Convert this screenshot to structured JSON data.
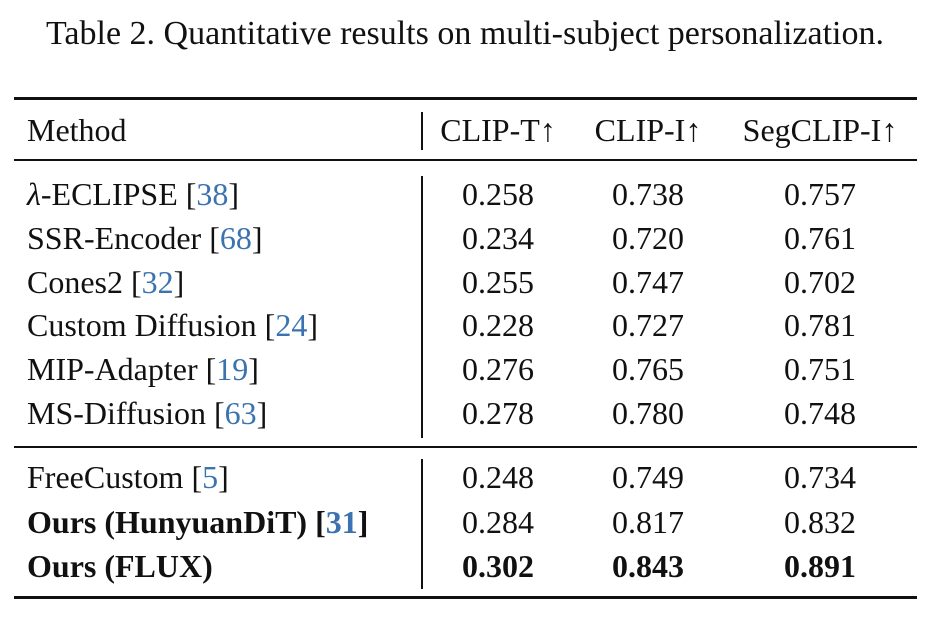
{
  "caption": "Table 2. Quantitative results on multi-subject personalization.",
  "table": {
    "headers": [
      "Method",
      "CLIP-T↑",
      "CLIP-I↑",
      "SegCLIP-I↑"
    ],
    "groups": [
      [
        {
          "name": "λ-ECLIPSE",
          "ref": "38",
          "bold": false,
          "clip_t": "0.258",
          "clip_i": "0.738",
          "segclip_i": "0.757",
          "bold_values": false
        },
        {
          "name": "SSR-Encoder",
          "ref": "68",
          "bold": false,
          "clip_t": "0.234",
          "clip_i": "0.720",
          "segclip_i": "0.761",
          "bold_values": false
        },
        {
          "name": "Cones2",
          "ref": "32",
          "bold": false,
          "clip_t": "0.255",
          "clip_i": "0.747",
          "segclip_i": "0.702",
          "bold_values": false
        },
        {
          "name": "Custom Diffusion",
          "ref": "24",
          "bold": false,
          "clip_t": "0.228",
          "clip_i": "0.727",
          "segclip_i": "0.781",
          "bold_values": false
        },
        {
          "name": "MIP-Adapter",
          "ref": "19",
          "bold": false,
          "clip_t": "0.276",
          "clip_i": "0.765",
          "segclip_i": "0.751",
          "bold_values": false
        },
        {
          "name": "MS-Diffusion",
          "ref": "63",
          "bold": false,
          "clip_t": "0.278",
          "clip_i": "0.780",
          "segclip_i": "0.748",
          "bold_values": false
        }
      ],
      [
        {
          "name": "FreeCustom",
          "ref": "5",
          "bold": false,
          "clip_t": "0.248",
          "clip_i": "0.749",
          "segclip_i": "0.734",
          "bold_values": false
        },
        {
          "name": "Ours (HunyuanDiT)",
          "ref": "31",
          "bold": true,
          "clip_t": "0.284",
          "clip_i": "0.817",
          "segclip_i": "0.832",
          "bold_values": false
        },
        {
          "name": "Ours (FLUX)",
          "ref": "",
          "bold": true,
          "clip_t": "0.302",
          "clip_i": "0.843",
          "segclip_i": "0.891",
          "bold_values": true
        }
      ]
    ]
  },
  "colors": {
    "text": "#111111",
    "citation": "#3a73b0",
    "rule": "#111111"
  }
}
